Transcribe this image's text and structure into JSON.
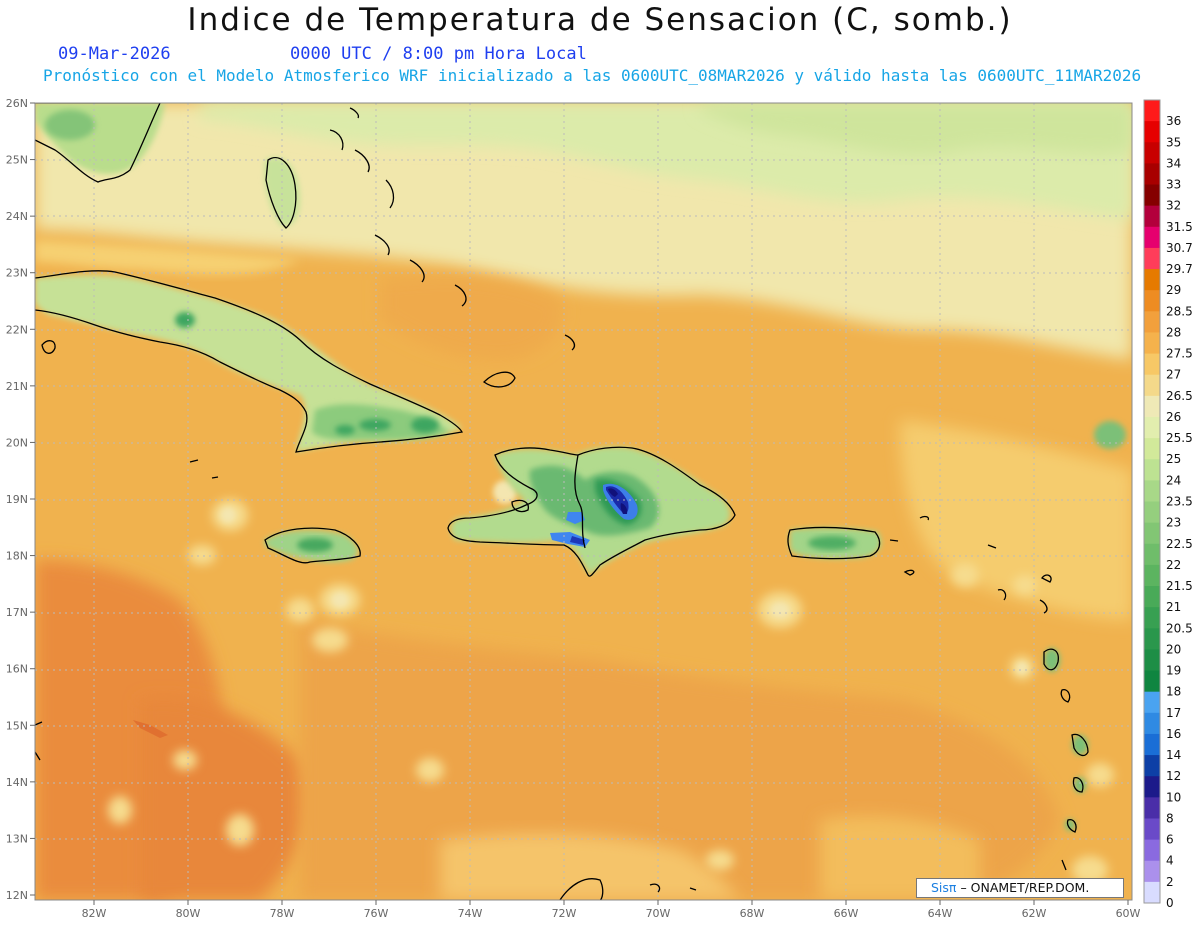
{
  "header": {
    "title": "Indice de Temperatura de Sensacion (C, somb.)",
    "date": "09-Mar-2026",
    "time": "0000 UTC / 8:00 pm Hora Local",
    "forecast": "Pronóstico con el Modelo Atmosferico WRF inicializado a las 0600UTC_08MAR2026 y válido hasta las  0600UTC_11MAR2026"
  },
  "axes": {
    "lat_labels": [
      "26N",
      "25N",
      "24N",
      "23N",
      "22N",
      "21N",
      "20N",
      "19N",
      "18N",
      "17N",
      "16N",
      "15N",
      "14N",
      "13N",
      "12N"
    ],
    "lon_labels": [
      "82W",
      "80W",
      "78W",
      "76W",
      "74W",
      "72W",
      "70W",
      "68W",
      "66W",
      "64W",
      "62W",
      "60W"
    ]
  },
  "colorbar": {
    "levels": [
      "36",
      "35",
      "34",
      "33",
      "32",
      "31.5",
      "30.7",
      "29.7",
      "29",
      "28.5",
      "28",
      "27.5",
      "27",
      "26.5",
      "26",
      "25.5",
      "25",
      "24",
      "23.5",
      "23",
      "22.5",
      "22",
      "21.5",
      "21",
      "20.5",
      "20",
      "19",
      "18",
      "17",
      "16",
      "14",
      "12",
      "10",
      "8",
      "6",
      "4",
      "2",
      "0"
    ],
    "colors": [
      "#ff1a1a",
      "#e60000",
      "#c80000",
      "#a80000",
      "#850000",
      "#b3003c",
      "#e6006e",
      "#ff3d5a",
      "#e67a00",
      "#ee8c22",
      "#f2a03c",
      "#f5b24c",
      "#f7c866",
      "#f4d98a",
      "#efe9b6",
      "#e2eeae",
      "#d2e99a",
      "#bde292",
      "#a8d888",
      "#95cf7e",
      "#82c674",
      "#6fbd6a",
      "#5cb460",
      "#49aa58",
      "#38a052",
      "#2a974c",
      "#1d8e46",
      "#0f8540",
      "#4aa3f0",
      "#2f8ae3",
      "#1a6ed6",
      "#0d3fa6",
      "#1c1a8a",
      "#4a2ea8",
      "#6a4ac8",
      "#8a6ae0",
      "#ab90ec",
      "#d9dcff"
    ]
  },
  "credit": {
    "brand": "Sisπ",
    "text": "– ONAMET/REP.DOM."
  }
}
